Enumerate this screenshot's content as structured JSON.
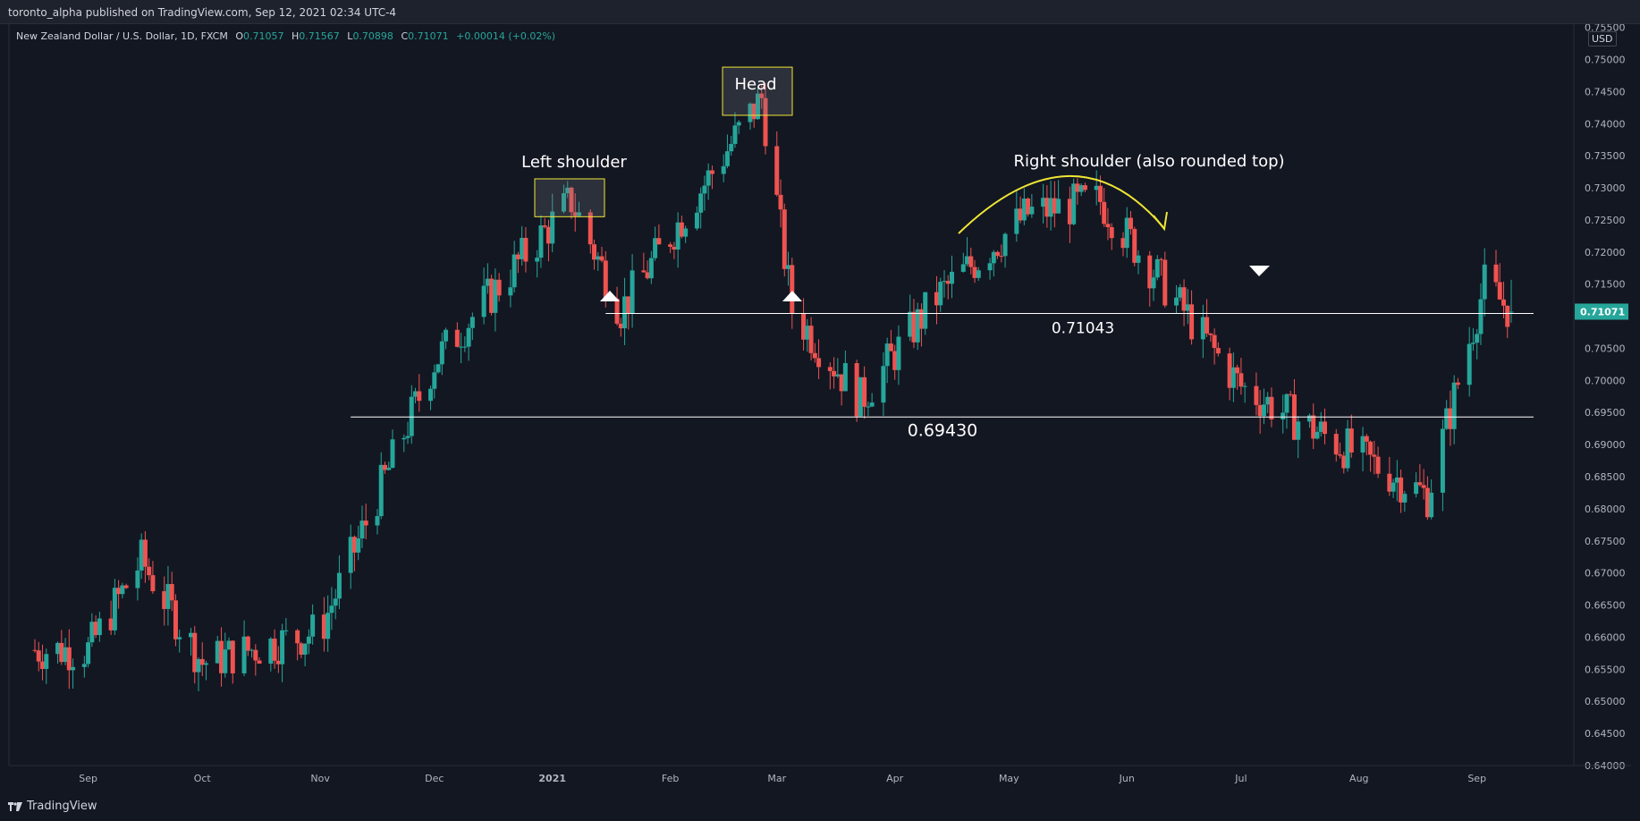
{
  "header": {
    "publisher": "toronto_alpha published on TradingView.com, Sep 12, 2021 02:34 UTC-4"
  },
  "symbol": {
    "name": "New Zealand Dollar / U.S. Dollar, 1D, FXCM",
    "open_label": "O",
    "open": "0.71057",
    "high_label": "H",
    "high": "0.71567",
    "low_label": "L",
    "low": "0.70898",
    "close_label": "C",
    "close": "0.71071",
    "change": "+0.00014 (+0.02%)"
  },
  "price_axis": {
    "currency": "USD"
  },
  "footer": {
    "brand": "TradingView"
  },
  "colors": {
    "background": "#131722",
    "up": "#26a69a",
    "down": "#ef5350",
    "annotation_yellow": "#f0e635",
    "line": "#ffffff",
    "grid": "#2a2e39"
  },
  "chart_data": {
    "type": "candlestick",
    "x_axis_labels": [
      "Sep",
      "Oct",
      "Nov",
      "Dec",
      "2021",
      "Feb",
      "Mar",
      "Apr",
      "May",
      "Jun",
      "Jul",
      "Aug",
      "Sep"
    ],
    "y_ticks": [
      "0.75500",
      "0.75000",
      "0.74500",
      "0.74000",
      "0.73500",
      "0.73000",
      "0.72500",
      "0.72000",
      "0.71500",
      "0.71000",
      "0.70500",
      "0.70000",
      "0.69500",
      "0.69000",
      "0.68500",
      "0.68000",
      "0.67500",
      "0.67000",
      "0.66500",
      "0.66000",
      "0.65500",
      "0.65000",
      "0.64500",
      "0.64000"
    ],
    "ylim": [
      0.64,
      0.7555
    ],
    "last_price": "0.71071",
    "annotations": {
      "head": "Head",
      "left_shoulder": "Left shoulder",
      "right_shoulder": "Right shoulder (also rounded top)",
      "neckline_value": 0.71043,
      "neckline_label": "0.71043",
      "support_value": 0.6943,
      "support_label": "0.69430"
    },
    "key_points": [
      {
        "date": "2020-09-01",
        "close": 0.658
      },
      {
        "date": "2020-09-15",
        "close": 0.672
      },
      {
        "date": "2020-10-01",
        "close": 0.656
      },
      {
        "date": "2020-11-01",
        "close": 0.661
      },
      {
        "date": "2020-12-01",
        "close": 0.703
      },
      {
        "date": "2021-01-06",
        "close": 0.728
      },
      {
        "date": "2021-01-19",
        "close": 0.711
      },
      {
        "date": "2021-02-25",
        "close": 0.744
      },
      {
        "date": "2021-03-05",
        "close": 0.711
      },
      {
        "date": "2021-03-23",
        "close": 0.697
      },
      {
        "date": "2021-04-12",
        "close": 0.713
      },
      {
        "date": "2021-05-06",
        "close": 0.726
      },
      {
        "date": "2021-05-25",
        "close": 0.728
      },
      {
        "date": "2021-06-17",
        "close": 0.71
      },
      {
        "date": "2021-07-01",
        "close": 0.699
      },
      {
        "date": "2021-08-19",
        "close": 0.682
      },
      {
        "date": "2021-09-03",
        "close": 0.715
      },
      {
        "date": "2021-09-10",
        "close": 0.7107
      }
    ]
  }
}
